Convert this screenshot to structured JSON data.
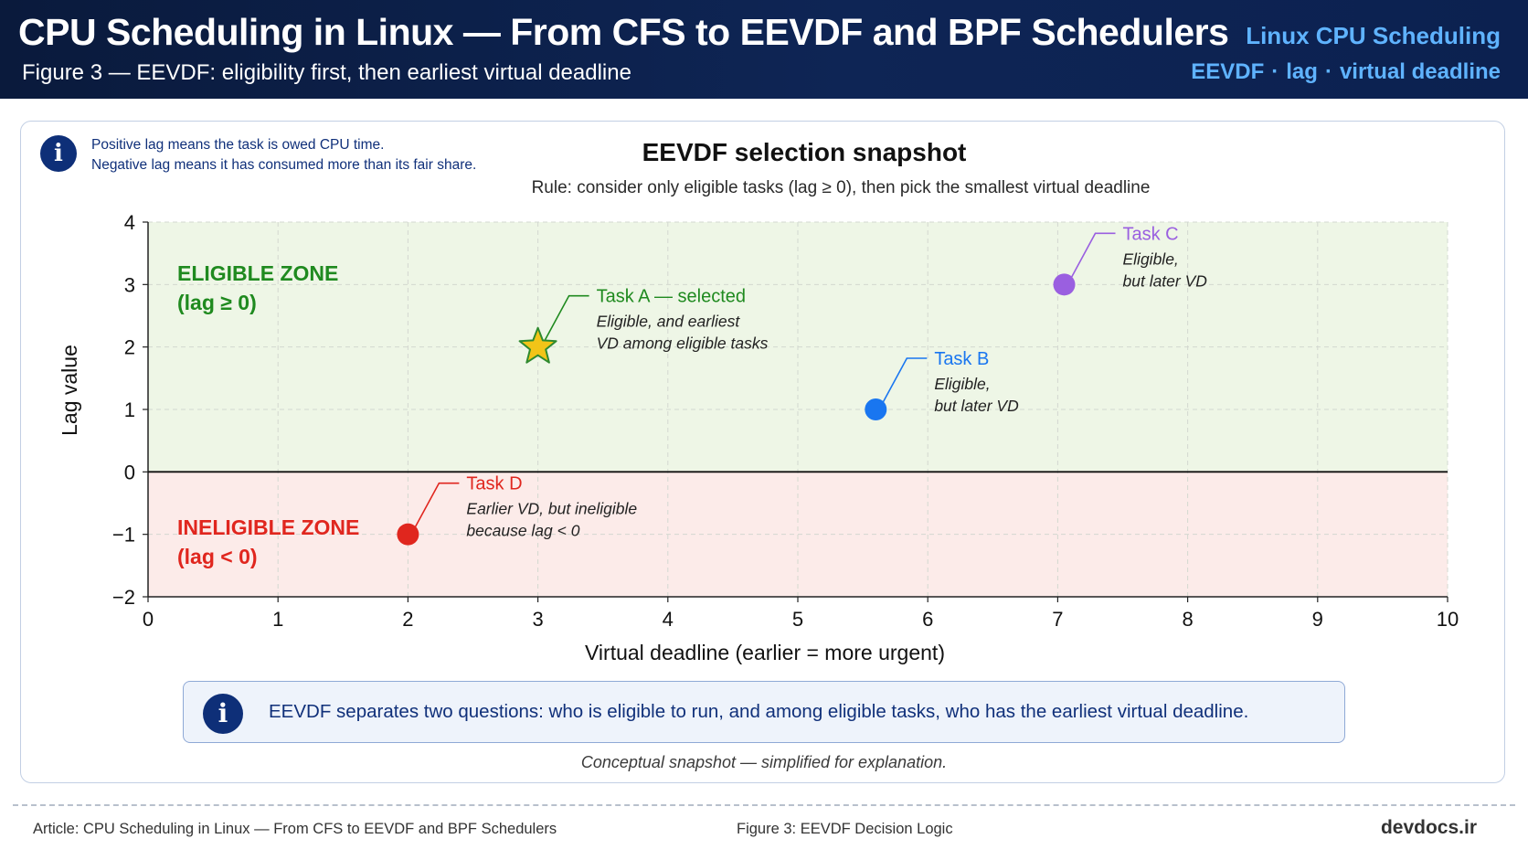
{
  "header": {
    "title": "CPU Scheduling in Linux — From CFS to EEVDF and BPF Schedulers",
    "subtitle": "Figure 3 — EEVDF: eligibility first, then earliest virtual deadline",
    "tag_primary": "Linux CPU Scheduling",
    "tag_items": [
      "EEVDF",
      "lag",
      "virtual deadline"
    ],
    "tag_separator": "·"
  },
  "info_note": {
    "line1": "Positive lag means the task is owed CPU time.",
    "line2": "Negative lag means it has consumed more than its fair share."
  },
  "chart_data": {
    "type": "scatter",
    "title": "EEVDF selection snapshot",
    "subtitle": "Rule: consider only eligible tasks (lag ≥ 0), then pick the smallest virtual deadline",
    "xlabel": "Virtual deadline (earlier = more urgent)",
    "ylabel": "Lag value",
    "xlim": [
      0,
      10
    ],
    "ylim": [
      -2,
      4
    ],
    "xticks": [
      0,
      1,
      2,
      3,
      4,
      5,
      6,
      7,
      8,
      9,
      10
    ],
    "yticks": [
      4,
      3,
      2,
      1,
      0,
      -1,
      -2
    ],
    "ytick_labels": [
      "4",
      "3",
      "2",
      "1",
      "0",
      "−1",
      "−2"
    ],
    "grid": true,
    "zones": [
      {
        "label_line1": "ELIGIBLE ZONE",
        "label_line2": "(lag ≥ 0)",
        "from": 0,
        "to": 4,
        "color": "#eef6e6",
        "label_color": "#1f8a1f"
      },
      {
        "label_line1": "INELIGIBLE ZONE",
        "label_line2": "(lag < 0)",
        "from": -2,
        "to": 0,
        "color": "#fcebe9",
        "label_color": "#e0261e"
      }
    ],
    "points": [
      {
        "name": "Task A — selected",
        "x": 3.0,
        "y": 2.0,
        "marker": "star",
        "color": "#f2c418",
        "label_color": "#1f8a1f",
        "desc1": "Eligible, and earliest",
        "desc2": "VD among eligible tasks"
      },
      {
        "name": "Task B",
        "x": 5.6,
        "y": 1.0,
        "marker": "circle",
        "color": "#1976f0",
        "label_color": "#1976f0",
        "desc1": "Eligible,",
        "desc2": "but later VD"
      },
      {
        "name": "Task C",
        "x": 7.05,
        "y": 3.0,
        "marker": "circle",
        "color": "#9a5fe0",
        "label_color": "#9a5fe0",
        "desc1": "Eligible,",
        "desc2": "but later VD"
      },
      {
        "name": "Task D",
        "x": 2.0,
        "y": -1.0,
        "marker": "circle",
        "color": "#e0261e",
        "label_color": "#e0261e",
        "desc1": "Earlier VD, but ineligible",
        "desc2": "because lag < 0"
      }
    ]
  },
  "callout": {
    "text": "EEVDF separates two questions: who is eligible to run, and among eligible tasks, who has the earliest virtual deadline."
  },
  "caption": "Conceptual snapshot — simplified for explanation.",
  "footer": {
    "article": "Article: CPU Scheduling in Linux — From CFS to EEVDF and BPF Schedulers",
    "figure": "Figure 3: EEVDF Decision Logic",
    "site": "devdocs.ir"
  }
}
